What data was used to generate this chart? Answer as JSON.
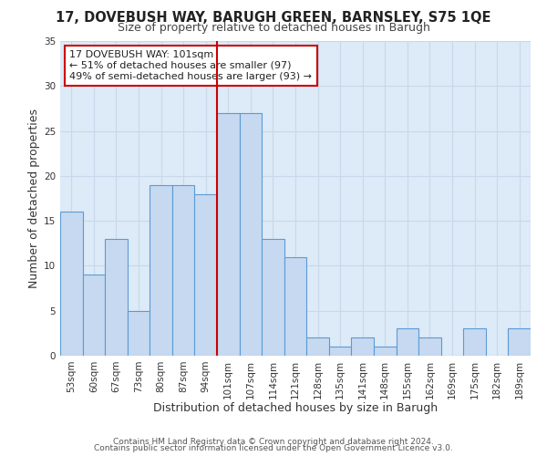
{
  "title": "17, DOVEBUSH WAY, BARUGH GREEN, BARNSLEY, S75 1QE",
  "subtitle": "Size of property relative to detached houses in Barugh",
  "xlabel": "Distribution of detached houses by size in Barugh",
  "ylabel": "Number of detached properties",
  "bin_labels": [
    "53sqm",
    "60sqm",
    "67sqm",
    "73sqm",
    "80sqm",
    "87sqm",
    "94sqm",
    "101sqm",
    "107sqm",
    "114sqm",
    "121sqm",
    "128sqm",
    "135sqm",
    "141sqm",
    "148sqm",
    "155sqm",
    "162sqm",
    "169sqm",
    "175sqm",
    "182sqm",
    "189sqm"
  ],
  "bar_heights": [
    16,
    9,
    13,
    5,
    19,
    19,
    18,
    27,
    27,
    13,
    11,
    2,
    1,
    2,
    1,
    3,
    2,
    0,
    3,
    0,
    3
  ],
  "highlight_index": 7,
  "bar_color": "#c6d9f0",
  "bar_edge_color": "#5b9bd5",
  "highlight_line_color": "#cc0000",
  "ylim": [
    0,
    35
  ],
  "yticks": [
    0,
    5,
    10,
    15,
    20,
    25,
    30,
    35
  ],
  "annotation_box_text": "17 DOVEBUSH WAY: 101sqm\n← 51% of detached houses are smaller (97)\n49% of semi-detached houses are larger (93) →",
  "annotation_box_edge_color": "#cc0000",
  "annotation_box_face_color": "#ffffff",
  "footer_line1": "Contains HM Land Registry data © Crown copyright and database right 2024.",
  "footer_line2": "Contains public sector information licensed under the Open Government Licence v3.0.",
  "grid_color": "#c8d8ea",
  "background_color": "#ddeaf7",
  "fig_bg_color": "#ffffff",
  "title_fontsize": 10.5,
  "subtitle_fontsize": 9,
  "axis_label_fontsize": 9,
  "tick_fontsize": 7.5,
  "annotation_fontsize": 8,
  "footer_fontsize": 6.5
}
